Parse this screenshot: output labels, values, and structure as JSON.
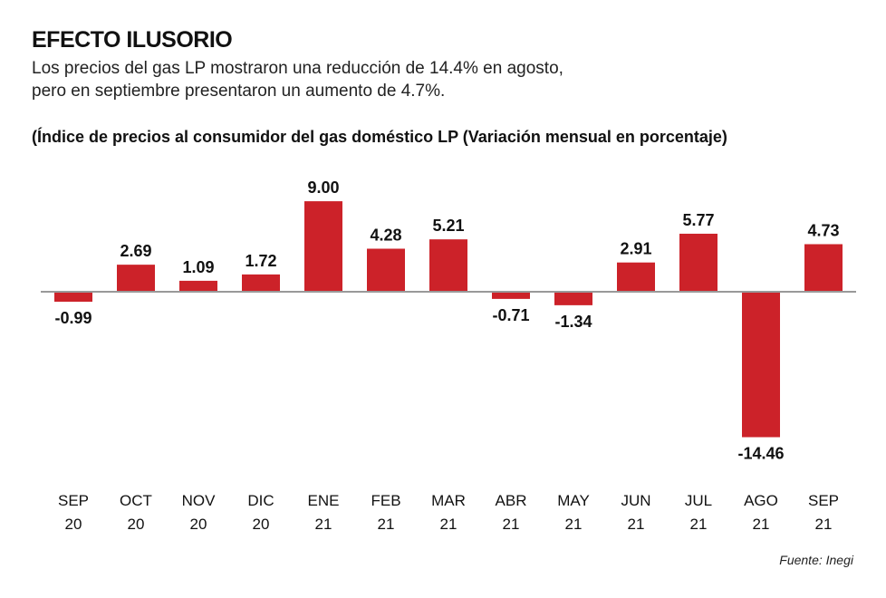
{
  "header": {
    "title": "EFECTO ILUSORIO",
    "subtitle_line1": "Los precios del gas LP mostraron una reducción de 14.4% en agosto,",
    "subtitle_line2": "pero en septiembre presentaron un aumento de 4.7%.",
    "chart_subtitle": "(Índice de precios al consumidor del gas doméstico LP  (Variación mensual en porcentaje)"
  },
  "source": "Fuente: Inegi",
  "colors": {
    "bar": "#cc2229",
    "axis": "#999999"
  },
  "chart_data": {
    "type": "bar",
    "title": "",
    "xlabel": "",
    "ylabel": "",
    "categories": [
      [
        "SEP",
        "20"
      ],
      [
        "OCT",
        "20"
      ],
      [
        "NOV",
        "20"
      ],
      [
        "DIC",
        "20"
      ],
      [
        "ENE",
        "21"
      ],
      [
        "FEB",
        "21"
      ],
      [
        "MAR",
        "21"
      ],
      [
        "ABR",
        "21"
      ],
      [
        "MAY",
        "21"
      ],
      [
        "JUN",
        "21"
      ],
      [
        "JUL",
        "21"
      ],
      [
        "AGO",
        "21"
      ],
      [
        "SEP",
        "21"
      ]
    ],
    "values": [
      -0.99,
      2.69,
      1.09,
      1.72,
      9.0,
      4.28,
      5.21,
      -0.71,
      -1.34,
      2.91,
      5.77,
      -14.46,
      4.73
    ],
    "labels": [
      "-0.99",
      "2.69",
      "1.09",
      "1.72",
      "9.00",
      "4.28",
      "5.21",
      "-0.71",
      "-1.34",
      "2.91",
      "5.77",
      "-14.46",
      "4.73"
    ],
    "ylim": [
      -14.46,
      9.0
    ],
    "grid": false,
    "legend": "none"
  }
}
